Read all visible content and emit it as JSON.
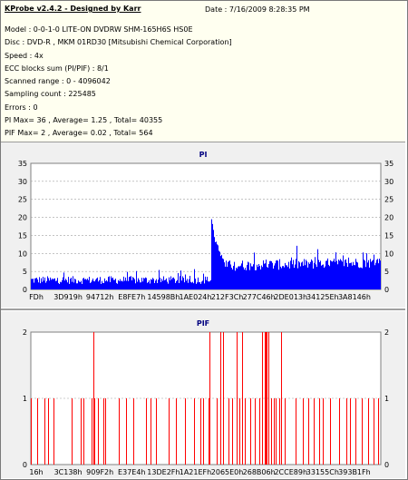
{
  "header": {
    "title": "KProbe v2.4.2 - Designed by Karr",
    "date": "Date : 7/16/2009 8:28:35 PM",
    "lines": [
      "Model : 0-0-1-0 LITE-ON DVDRW SHM-165H6S HS0E",
      "Disc : DVD-R , MKM 01RD30  [Mitsubishi Chemical Corporation]",
      "Speed : 4x",
      "ECC blocks sum (PI/PIF) : 8/1",
      "Scanned range : 0 - 4096042",
      "Sampling count : 225485",
      "Errors : 0",
      "PI Max= 36 , Average= 1.25 , Total= 40355",
      "PIF Max= 2 , Average= 0.02 , Total= 564"
    ]
  },
  "colors": {
    "series": "#0000ff",
    "pif": "#ff0000",
    "plot_bg": "#ffffff",
    "grid": "#a0a0a0"
  },
  "chart_data": [
    {
      "type": "bar",
      "title": "PI",
      "ylim": [
        0,
        35
      ],
      "yticks": [
        0,
        5,
        10,
        15,
        20,
        25,
        30,
        35
      ],
      "xtick_labels": [
        "FDh",
        "3D919h",
        "94712h",
        "E8FE7h",
        "14598Bh",
        "1AE024h",
        "212F3Ch",
        "277C46h",
        "2DE013h",
        "34125Eh",
        "3A8146h"
      ],
      "series": [
        {
          "segment": "start-to-212F3Ch",
          "typical": 3,
          "max": 7
        },
        {
          "segment": "212F3Ch-to-end",
          "peak": 19,
          "typical": 6,
          "max": 13
        }
      ]
    },
    {
      "type": "bar",
      "title": "PIF",
      "ylim": [
        0,
        2
      ],
      "yticks": [
        0,
        1,
        2
      ],
      "xtick_labels": [
        "16h",
        "3C138h",
        "909F2h",
        "E37E4h",
        "13DE2Fh",
        "1A21EFh",
        "2065E0h",
        "268B06h",
        "2CCE89h",
        "33155Ch",
        "393B1Fh"
      ],
      "series": [
        {
          "name": "",
          "values": []
        }
      ]
    }
  ]
}
